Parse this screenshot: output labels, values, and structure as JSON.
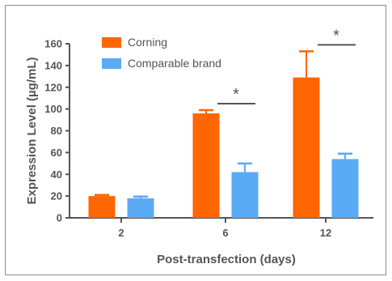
{
  "chart_data": {
    "type": "bar",
    "title": "",
    "xlabel": "Post-transfection (days)",
    "ylabel": "Expression Level (µg/mL)",
    "ylim": [
      0,
      160
    ],
    "yticks": [
      0,
      20,
      40,
      60,
      80,
      100,
      120,
      140,
      160
    ],
    "categories": [
      "2",
      "6",
      "12"
    ],
    "series": [
      {
        "name": "Corning",
        "color": "#ff6600",
        "values": [
          20,
          96,
          129
        ],
        "errors": [
          1,
          3,
          24
        ]
      },
      {
        "name": "Comparable brand",
        "color": "#5aaaf5",
        "values": [
          18,
          42,
          54
        ],
        "errors": [
          1.5,
          8,
          5
        ]
      }
    ],
    "legend_position": "top-left",
    "annotations": [
      {
        "category": "6",
        "text": "*"
      },
      {
        "category": "12",
        "text": "*"
      }
    ],
    "grid": false
  }
}
